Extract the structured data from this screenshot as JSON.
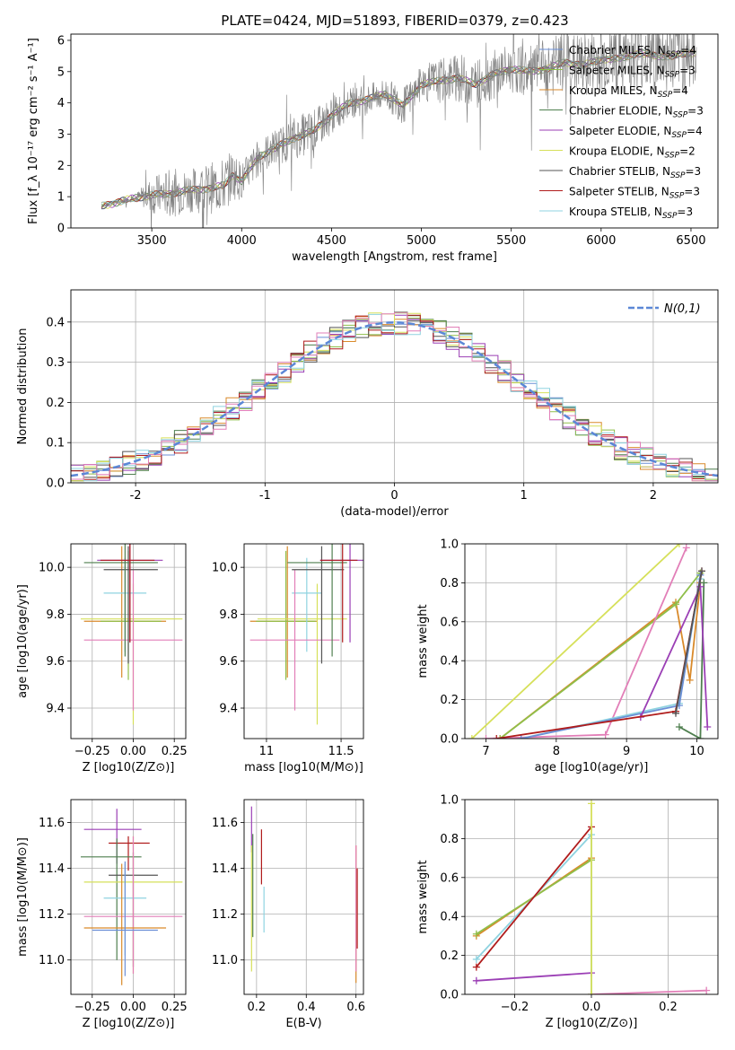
{
  "figure_title": "PLATE=0424, MJD=51893, FIBERID=0379, z=0.423",
  "model_colors": {
    "Chabrier MILES": "#6b8fd6",
    "Salpeter MILES": "#8fbf4a",
    "Kroupa MILES": "#d98a2b",
    "Chabrier ELODIE": "#4f7f4f",
    "Salpeter ELODIE": "#9b3fb5",
    "Kroupa ELODIE": "#d6e05a",
    "Chabrier STELIB": "#555555",
    "Salpeter STELIB": "#b01c1c",
    "Kroupa STELIB": "#8fd3e0",
    "extra": "#e27fb8"
  },
  "chart_data": [
    {
      "id": "spectrum",
      "type": "line",
      "title": "",
      "xlabel": "wavelength [Angstrom, rest frame]",
      "ylabel": "Flux [f_λ 10⁻¹⁷ erg cm⁻² s⁻¹ A⁻¹]",
      "xlim": [
        3050,
        6650
      ],
      "ylim": [
        0,
        6.2
      ],
      "xticks": [
        3500,
        4000,
        4500,
        5000,
        5500,
        6000,
        6500
      ],
      "yticks": [
        0,
        1,
        2,
        3,
        4,
        5,
        6
      ],
      "grid": false,
      "legend_position": "upper-right",
      "data_series": {
        "name": "",
        "color": "#7f7f7f",
        "x": [
          3220,
          3400,
          3500,
          3600,
          3700,
          3800,
          3900,
          3950,
          4000,
          4100,
          4200,
          4300,
          4400,
          4500,
          4600,
          4700,
          4800,
          4900,
          5000,
          5100,
          5200,
          5300,
          5400,
          5500,
          5600,
          5700,
          5800,
          5900,
          6000,
          6100,
          6200,
          6300,
          6400,
          6500
        ],
        "y": [
          0.7,
          0.95,
          1.05,
          1.1,
          1.2,
          1.25,
          1.35,
          1.7,
          1.5,
          2.3,
          2.6,
          2.9,
          3.1,
          3.6,
          4.0,
          4.1,
          4.3,
          3.9,
          4.6,
          4.7,
          4.8,
          4.6,
          4.9,
          5.1,
          5.0,
          5.1,
          5.3,
          5.2,
          5.4,
          5.4,
          5.6,
          5.5,
          5.5,
          5.6
        ],
        "noise": [
          0.05,
          0.1,
          0.6,
          0.8,
          0.7,
          0.8,
          0.9,
          0.8,
          0.6,
          0.6,
          0.6,
          0.7,
          0.7,
          0.6,
          0.5,
          0.5,
          0.5,
          0.6,
          0.6,
          0.7,
          0.8,
          0.8,
          0.8,
          0.8,
          0.8,
          1.0,
          1.0,
          1.0,
          1.1,
          1.1,
          1.2,
          1.2,
          1.2,
          1.3
        ]
      },
      "series": [
        {
          "name": "Chabrier MILES, N_SSP=4",
          "color": "#6b8fd6"
        },
        {
          "name": "Salpeter MILES, N_SSP=3",
          "color": "#8fbf4a"
        },
        {
          "name": "Kroupa MILES, N_SSP=4",
          "color": "#d98a2b"
        },
        {
          "name": "Chabrier ELODIE, N_SSP=3",
          "color": "#4f7f4f"
        },
        {
          "name": "Salpeter ELODIE, N_SSP=4",
          "color": "#9b3fb5"
        },
        {
          "name": "Kroupa ELODIE, N_SSP=2",
          "color": "#d6e05a"
        },
        {
          "name": "Chabrier STELIB, N_SSP=3",
          "color": "#555555"
        },
        {
          "name": "Salpeter STELIB, N_SSP=3",
          "color": "#b01c1c"
        },
        {
          "name": "Kroupa STELIB, N_SSP=3",
          "color": "#8fd3e0"
        }
      ]
    },
    {
      "id": "residuals",
      "type": "line",
      "title": "",
      "xlabel": "(data-model)/error",
      "ylabel": "Normed distribution",
      "xlim": [
        -2.5,
        2.5
      ],
      "ylim": [
        0,
        0.48
      ],
      "xticks": [
        -2,
        -1,
        0,
        1,
        2
      ],
      "yticks": [
        0.0,
        0.1,
        0.2,
        0.3,
        0.4
      ],
      "grid": true,
      "legend_position": "upper-right",
      "gaussian": {
        "name": "N(0,1)",
        "color": "#5b87d6"
      },
      "bin_width": 0.1
    },
    {
      "id": "age_vs_Z",
      "type": "scatter",
      "title": "",
      "xlabel": "Z [log10(Z/Z⊙)]",
      "ylabel": "age [log10(age/yr)]",
      "xlim": [
        -0.38,
        0.32
      ],
      "ylim": [
        9.27,
        10.1
      ],
      "xticks": [
        -0.25,
        0.0,
        0.25
      ],
      "xtick_labels": [
        "−0.25",
        "0.00",
        "0.25"
      ],
      "yticks": [
        9.4,
        9.6,
        9.8,
        10.0
      ],
      "grid": true,
      "points": [
        {
          "color": "#d98a2b",
          "x": -0.07,
          "y": 9.77,
          "xerr": [
            0.23,
            0.27
          ],
          "yerr": [
            0.24,
            0.32
          ]
        },
        {
          "color": "#8fbf4a",
          "x": -0.03,
          "y": 9.77,
          "xerr": [
            0.17,
            0.2
          ],
          "yerr": [
            0.25,
            0.3
          ]
        },
        {
          "color": "#d6e05a",
          "x": 0.0,
          "y": 9.78,
          "xerr": [
            0.32,
            0.3
          ],
          "yerr": [
            0.45,
            0.15
          ]
        },
        {
          "color": "#8fd3e0",
          "x": -0.05,
          "y": 9.89,
          "xerr": [
            0.13,
            0.13
          ],
          "yerr": [
            0.25,
            0.15
          ]
        },
        {
          "color": "#e27fb8",
          "x": 0.0,
          "y": 9.69,
          "xerr": [
            0.3,
            0.3
          ],
          "yerr": [
            0.3,
            0.3
          ]
        },
        {
          "color": "#555555",
          "x": -0.03,
          "y": 9.99,
          "xerr": [
            0.15,
            0.18
          ],
          "yerr": [
            0.4,
            0.1
          ]
        },
        {
          "color": "#4f7f4f",
          "x": -0.05,
          "y": 10.02,
          "xerr": [
            0.25,
            0.2
          ],
          "yerr": [
            0.4,
            0.08
          ]
        },
        {
          "color": "#9b3fb5",
          "x": -0.02,
          "y": 10.03,
          "xerr": [
            0.2,
            0.2
          ],
          "yerr": [
            0.35,
            0.07
          ]
        },
        {
          "color": "#b01c1c",
          "x": -0.02,
          "y": 10.03,
          "xerr": [
            0.18,
            0.15
          ],
          "yerr": [
            0.35,
            0.07
          ]
        }
      ]
    },
    {
      "id": "age_vs_mass",
      "type": "scatter",
      "title": "",
      "xlabel": "mass [log10(M/M⊙)]",
      "ylabel": "",
      "xlim": [
        10.85,
        11.65
      ],
      "ylim": [
        9.27,
        10.1
      ],
      "xticks": [
        11.0,
        11.5
      ],
      "yticks": [
        9.4,
        9.6,
        9.8,
        10.0
      ],
      "grid": true,
      "points": [
        {
          "color": "#d98a2b",
          "x": 11.14,
          "y": 9.77,
          "xerr": [
            0.25,
            0.2
          ],
          "yerr": [
            0.24,
            0.32
          ]
        },
        {
          "color": "#8fbf4a",
          "x": 11.13,
          "y": 9.77,
          "xerr": [
            0.2,
            0.2
          ],
          "yerr": [
            0.25,
            0.3
          ]
        },
        {
          "color": "#d6e05a",
          "x": 11.34,
          "y": 9.78,
          "xerr": [
            0.4,
            0.2
          ],
          "yerr": [
            0.45,
            0.15
          ]
        },
        {
          "color": "#8fd3e0",
          "x": 11.27,
          "y": 9.89,
          "xerr": [
            0.1,
            0.1
          ],
          "yerr": [
            0.25,
            0.15
          ]
        },
        {
          "color": "#e27fb8",
          "x": 11.19,
          "y": 9.69,
          "xerr": [
            0.3,
            0.3
          ],
          "yerr": [
            0.3,
            0.3
          ]
        },
        {
          "color": "#555555",
          "x": 11.37,
          "y": 9.99,
          "xerr": [
            0.2,
            0.15
          ],
          "yerr": [
            0.4,
            0.1
          ]
        },
        {
          "color": "#4f7f4f",
          "x": 11.44,
          "y": 10.02,
          "xerr": [
            0.3,
            0.1
          ],
          "yerr": [
            0.4,
            0.08
          ]
        },
        {
          "color": "#9b3fb5",
          "x": 11.56,
          "y": 10.03,
          "xerr": [
            0.2,
            0.25
          ],
          "yerr": [
            0.35,
            0.07
          ]
        },
        {
          "color": "#b01c1c",
          "x": 11.51,
          "y": 10.03,
          "xerr": [
            0.15,
            0.1
          ],
          "yerr": [
            0.35,
            0.07
          ]
        }
      ]
    },
    {
      "id": "weight_vs_age",
      "type": "line",
      "title": "",
      "xlabel": "age [log10(age/yr)]",
      "ylabel": "mass weight",
      "xlim": [
        6.7,
        10.3
      ],
      "ylim": [
        0.0,
        1.0
      ],
      "xticks": [
        7,
        8,
        9,
        10
      ],
      "yticks": [
        0.0,
        0.2,
        0.4,
        0.6,
        0.8,
        1.0
      ],
      "grid": true,
      "series": [
        {
          "color": "#d6e05a",
          "x": [
            6.8,
            9.75
          ],
          "y": [
            0.0,
            1.0
          ]
        },
        {
          "color": "#d98a2b",
          "x": [
            7.2,
            9.7,
            9.9,
            10.05
          ],
          "y": [
            0.0,
            0.7,
            0.3,
            0.8
          ]
        },
        {
          "color": "#8fbf4a",
          "x": [
            7.2,
            9.7,
            10.05
          ],
          "y": [
            0.0,
            0.69,
            0.85
          ]
        },
        {
          "color": "#e27fb8",
          "x": [
            7.0,
            8.7,
            9.85
          ],
          "y": [
            0.0,
            0.02,
            0.98
          ]
        },
        {
          "color": "#8fd3e0",
          "x": [
            7.5,
            9.75,
            10.05
          ],
          "y": [
            0.0,
            0.18,
            0.82
          ]
        },
        {
          "color": "#6b8fd6",
          "x": [
            7.5,
            9.75,
            10.05
          ],
          "y": [
            0.0,
            0.17,
            0.84
          ]
        },
        {
          "color": "#4f7f4f",
          "x": [
            9.75,
            10.05,
            10.1
          ],
          "y": [
            0.06,
            0.0,
            0.8
          ]
        },
        {
          "color": "#9b3fb5",
          "x": [
            9.2,
            10.05,
            10.15
          ],
          "y": [
            0.11,
            0.78,
            0.06
          ]
        },
        {
          "color": "#b01c1c",
          "x": [
            7.15,
            9.7,
            10.07
          ],
          "y": [
            0.0,
            0.14,
            0.86
          ]
        },
        {
          "color": "#555555",
          "x": [
            9.7,
            10.07
          ],
          "y": [
            0.13,
            0.86
          ]
        }
      ]
    },
    {
      "id": "mass_vs_Z",
      "type": "scatter",
      "title": "",
      "xlabel": "Z [log10(Z/Z⊙)]",
      "ylabel": "mass [log10(M/M⊙)]",
      "xlim": [
        -0.38,
        0.32
      ],
      "ylim": [
        10.85,
        11.7
      ],
      "xticks": [
        -0.25,
        0.0,
        0.25
      ],
      "xtick_labels": [
        "−0.25",
        "0.00",
        "0.25"
      ],
      "yticks": [
        11.0,
        11.2,
        11.4,
        11.6
      ],
      "grid": true,
      "points": [
        {
          "color": "#9b3fb5",
          "x": -0.1,
          "y": 11.57,
          "xerr": [
            0.2,
            0.15
          ],
          "yerr": [
            0.15,
            0.09
          ]
        },
        {
          "color": "#b01c1c",
          "x": -0.03,
          "y": 11.51,
          "xerr": [
            0.12,
            0.13
          ],
          "yerr": [
            0.12,
            0.03
          ]
        },
        {
          "color": "#4f7f4f",
          "x": -0.1,
          "y": 11.45,
          "xerr": [
            0.22,
            0.15
          ],
          "yerr": [
            0.45,
            0.08
          ]
        },
        {
          "color": "#555555",
          "x": 0.0,
          "y": 11.37,
          "xerr": [
            0.15,
            0.15
          ],
          "yerr": [
            0.4,
            0.1
          ]
        },
        {
          "color": "#d6e05a",
          "x": 0.0,
          "y": 11.34,
          "xerr": [
            0.3,
            0.3
          ],
          "yerr": [
            0.4,
            0.2
          ]
        },
        {
          "color": "#8fd3e0",
          "x": -0.05,
          "y": 11.27,
          "xerr": [
            0.13,
            0.13
          ],
          "yerr": [
            0.25,
            0.15
          ]
        },
        {
          "color": "#e27fb8",
          "x": 0.0,
          "y": 11.19,
          "xerr": [
            0.3,
            0.3
          ],
          "yerr": [
            0.25,
            0.35
          ]
        },
        {
          "color": "#d98a2b",
          "x": -0.07,
          "y": 11.14,
          "xerr": [
            0.23,
            0.27
          ],
          "yerr": [
            0.25,
            0.28
          ]
        },
        {
          "color": "#6b8fd6",
          "x": -0.05,
          "y": 11.13,
          "xerr": [
            0.2,
            0.2
          ],
          "yerr": [
            0.2,
            0.3
          ]
        }
      ]
    },
    {
      "id": "mass_vs_ebv",
      "type": "scatter",
      "title": "",
      "xlabel": "E(B-V)",
      "ylabel": "",
      "xlim": [
        0.15,
        0.63
      ],
      "ylim": [
        10.85,
        11.7
      ],
      "xticks": [
        0.2,
        0.4,
        0.6
      ],
      "yticks": [
        11.0,
        11.2,
        11.4,
        11.6
      ],
      "grid": true,
      "points": [
        {
          "color": "#9b3fb5",
          "x": 0.18,
          "y": 11.57,
          "yerr": [
            0.1,
            0.1
          ]
        },
        {
          "color": "#d6e05a",
          "x": 0.18,
          "y": 11.3,
          "yerr": [
            0.35,
            0.2
          ]
        },
        {
          "color": "#4f7f4f",
          "x": 0.185,
          "y": 11.3,
          "yerr": [
            0.2,
            0.25
          ]
        },
        {
          "color": "#b01c1c",
          "x": 0.22,
          "y": 11.45,
          "yerr": [
            0.12,
            0.12
          ]
        },
        {
          "color": "#8fd3e0",
          "x": 0.23,
          "y": 11.22,
          "yerr": [
            0.1,
            0.1
          ]
        },
        {
          "color": "#d98a2b",
          "x": 0.6,
          "y": 11.2,
          "yerr": [
            0.3,
            0.3
          ]
        },
        {
          "color": "#e27fb8",
          "x": 0.6,
          "y": 11.25,
          "yerr": [
            0.3,
            0.25
          ]
        },
        {
          "color": "#b01c1c",
          "x": 0.605,
          "y": 11.35,
          "yerr": [
            0.3,
            0.05
          ]
        }
      ]
    },
    {
      "id": "weight_vs_Z",
      "type": "line",
      "title": "",
      "xlabel": "Z [log10(Z/Z⊙)]",
      "ylabel": "mass weight",
      "xlim": [
        -0.33,
        0.33
      ],
      "ylim": [
        0.0,
        1.0
      ],
      "xticks": [
        -0.2,
        0.0,
        0.2
      ],
      "xtick_labels": [
        "−0.2",
        "0.0",
        "0.2"
      ],
      "yticks": [
        0.0,
        0.2,
        0.4,
        0.6,
        0.8,
        1.0
      ],
      "grid": true,
      "series": [
        {
          "color": "#d98a2b",
          "x": [
            -0.3,
            0.0
          ],
          "y": [
            0.3,
            0.7
          ]
        },
        {
          "color": "#8fbf4a",
          "x": [
            -0.3,
            0.0
          ],
          "y": [
            0.31,
            0.69
          ]
        },
        {
          "color": "#8fd3e0",
          "x": [
            -0.3,
            0.0,
            0.0
          ],
          "y": [
            0.18,
            0.82,
            0.0
          ]
        },
        {
          "color": "#b01c1c",
          "x": [
            -0.3,
            0.0
          ],
          "y": [
            0.14,
            0.86
          ]
        },
        {
          "color": "#9b3fb5",
          "x": [
            -0.3,
            0.0
          ],
          "y": [
            0.07,
            0.11
          ]
        },
        {
          "color": "#e27fb8",
          "x": [
            0.0,
            0.3
          ],
          "y": [
            0.0,
            0.02
          ]
        },
        {
          "color": "#d6e05a",
          "x": [
            0.0,
            0.0
          ],
          "y": [
            0.0,
            0.98
          ]
        }
      ]
    }
  ]
}
